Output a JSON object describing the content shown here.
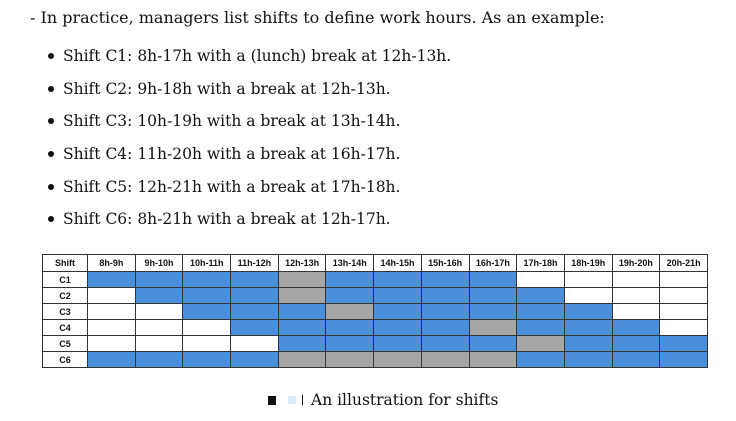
{
  "intro": "- In practice, managers list shifts to define work hours. As an example:",
  "shifts_text": [
    "Shift C1: 8h-17h with a (lunch) break at 12h-13h.",
    "Shift C2: 9h-18h with a break at 12h-13h.",
    "Shift C3: 10h-19h with a break at 13h-14h.",
    "Shift C4: 11h-20h with a break at 16h-17h.",
    "Shift C5: 12h-21h with a break at 17h-18h.",
    "Shift C6: 8h-21h with a break at 12h-17h."
  ],
  "table": {
    "corner_header": "Shift",
    "columns": [
      "8h-9h",
      "9h-10h",
      "10h-11h",
      "11h-12h",
      "12h-13h",
      "13h-14h",
      "14h-15h",
      "15h-16h",
      "16h-17h",
      "17h-18h",
      "18h-19h",
      "19h-20h",
      "20h-21h"
    ],
    "colors": {
      "work": "#4a8fd9",
      "break": "#a6a6a6",
      "off": "#ffffff"
    },
    "rows": [
      {
        "label": "C1",
        "cells": [
          "W",
          "W",
          "W",
          "W",
          "B",
          "W",
          "W",
          "W",
          "W",
          "O",
          "O",
          "O",
          "O"
        ]
      },
      {
        "label": "C2",
        "cells": [
          "O",
          "W",
          "W",
          "W",
          "B",
          "W",
          "W",
          "W",
          "W",
          "W",
          "O",
          "O",
          "O"
        ]
      },
      {
        "label": "C3",
        "cells": [
          "O",
          "O",
          "W",
          "W",
          "W",
          "B",
          "W",
          "W",
          "W",
          "W",
          "W",
          "O",
          "O"
        ]
      },
      {
        "label": "C4",
        "cells": [
          "O",
          "O",
          "O",
          "W",
          "W",
          "W",
          "W",
          "W",
          "B",
          "W",
          "W",
          "W",
          "O"
        ]
      },
      {
        "label": "C5",
        "cells": [
          "O",
          "O",
          "O",
          "O",
          "W",
          "W",
          "W",
          "W",
          "W",
          "B",
          "W",
          "W",
          "W"
        ]
      },
      {
        "label": "C6",
        "cells": [
          "W",
          "W",
          "W",
          "W",
          "B",
          "B",
          "B",
          "B",
          "B",
          "W",
          "W",
          "W",
          "W"
        ]
      }
    ]
  },
  "caption": "An illustration for shifts"
}
